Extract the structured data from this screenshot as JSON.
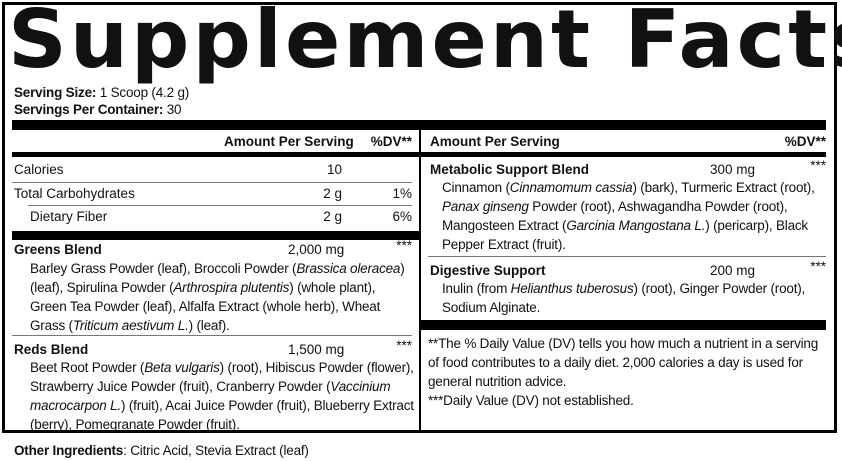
{
  "title": "Supplement Facts",
  "serving": {
    "size_label": "Serving Size:",
    "size_value": " 1 Scoop (4.2 g)",
    "per_container_label": "Servings Per Container:",
    "per_container_value": " 30"
  },
  "left": {
    "header": {
      "amount": "Amount Per Serving",
      "dv": "%DV**"
    },
    "nutrients": [
      {
        "name": "Calories",
        "amount": "10",
        "dv": ""
      },
      {
        "name": "Total Carbohydrates",
        "amount": "2 g",
        "dv": "1%"
      },
      {
        "name": "Dietary Fiber",
        "amount": "2 g",
        "dv": "6%"
      }
    ],
    "blends": [
      {
        "name": "Greens Blend",
        "amount": "2,000 mg",
        "dv": "***",
        "ingredients": [
          "Barley Grass Powder (leaf), Broccoli Powder (",
          "Brassica oleracea",
          ") (leaf), Spirulina Powder (",
          "Arthrospira plutentis",
          ") (whole plant), Green Tea Powder (leaf), Alfalfa Extract (whole herb), Wheat Grass (",
          "Triticum aestivum L.",
          ") (leaf)."
        ]
      },
      {
        "name": "Reds Blend",
        "amount": "1,500 mg",
        "dv": "***",
        "ingredients": [
          "Beet Root Powder (",
          "Beta vulgaris",
          ") (root), Hibiscus Powder (flower), Strawberry Juice Powder (fruit), Cranberry Powder (",
          "Vaccinium macrocarpon L.",
          ") (fruit), Acai Juice Powder (fruit), Blueberry Extract (berry), Pomegranate Powder (fruit)."
        ]
      }
    ]
  },
  "right": {
    "header": {
      "amount": "Amount Per Serving",
      "dv": "%DV**"
    },
    "blends": [
      {
        "name": "Metabolic Support Blend",
        "amount": "300 mg",
        "dv": "***",
        "ingredients": [
          "Cinnamon (",
          "Cinnamomum cassia",
          ") (bark), Turmeric Extract (root), ",
          "Panax ginseng",
          " Powder (root), Ashwagandha Powder (root), Mangosteen Extract (",
          "Garcinia Mangostana L.",
          ") (pericarp), Black Pepper Extract (fruit)."
        ]
      },
      {
        "name": "Digestive Support",
        "amount": "200 mg",
        "dv": "***",
        "ingredients": [
          "Inulin (from ",
          "Helianthus tuberosus",
          ") (root), Ginger Powder (root), Sodium Alginate."
        ]
      }
    ],
    "footnotes": [
      "**The % Daily Value (DV) tells you how much a nutrient in a serving of food contributes to a daily diet. 2,000 calories a day is used for general nutrition advice.",
      "***Daily Value (DV) not established."
    ]
  },
  "other": {
    "label": "Other Ingredients",
    "value": ": Citric Acid, Stevia Extract (leaf)"
  }
}
